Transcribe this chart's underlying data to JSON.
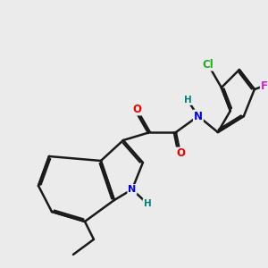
{
  "background_color": "#ebebeb",
  "bond_color": "#1a1a1a",
  "atom_colors": {
    "N": "#0000ee",
    "O": "#ee0000",
    "Cl": "#22aa22",
    "F": "#cc22cc",
    "H_label": "#008080",
    "C": "#1a1a1a"
  },
  "figsize": [
    3.0,
    3.0
  ],
  "dpi": 100
}
